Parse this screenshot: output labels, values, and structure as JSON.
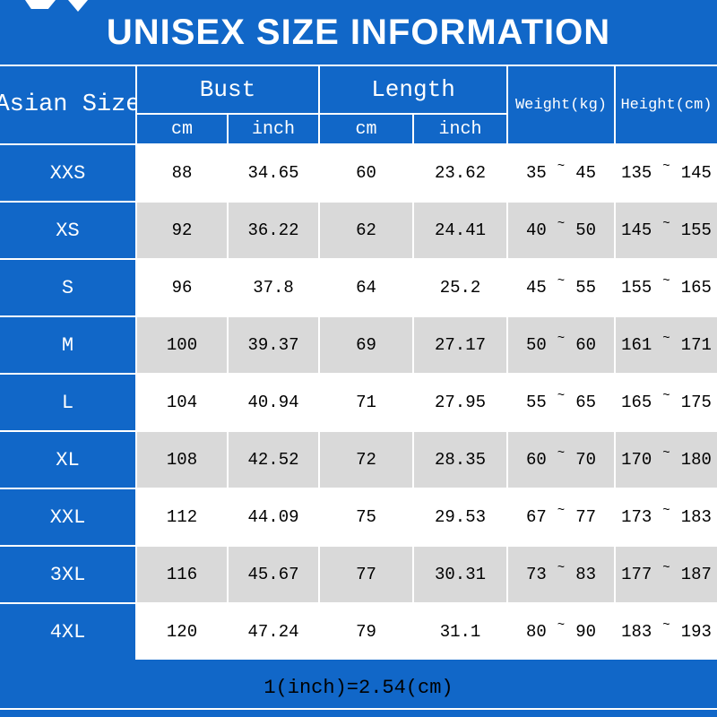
{
  "title": "UNISEX SIZE INFORMATION",
  "footer": "1(inch)=2.54(cm)",
  "header": {
    "size_col": "Asian Size",
    "bust": "Bust",
    "length": "Length",
    "cm": "cm",
    "inch": "inch",
    "weight": "Weight(kg)",
    "height": "Height(cm)",
    "tilde": "~"
  },
  "rows": [
    {
      "size": "XXS",
      "bust_cm": "88",
      "bust_inch": "34.65",
      "length_cm": "60",
      "length_inch": "23.62",
      "weight_min": "35",
      "weight_max": "45",
      "height_min": "135",
      "height_max": "145"
    },
    {
      "size": "XS",
      "bust_cm": "92",
      "bust_inch": "36.22",
      "length_cm": "62",
      "length_inch": "24.41",
      "weight_min": "40",
      "weight_max": "50",
      "height_min": "145",
      "height_max": "155"
    },
    {
      "size": "S",
      "bust_cm": "96",
      "bust_inch": "37.8",
      "length_cm": "64",
      "length_inch": "25.2",
      "weight_min": "45",
      "weight_max": "55",
      "height_min": "155",
      "height_max": "165"
    },
    {
      "size": "M",
      "bust_cm": "100",
      "bust_inch": "39.37",
      "length_cm": "69",
      "length_inch": "27.17",
      "weight_min": "50",
      "weight_max": "60",
      "height_min": "161",
      "height_max": "171"
    },
    {
      "size": "L",
      "bust_cm": "104",
      "bust_inch": "40.94",
      "length_cm": "71",
      "length_inch": "27.95",
      "weight_min": "55",
      "weight_max": "65",
      "height_min": "165",
      "height_max": "175"
    },
    {
      "size": "XL",
      "bust_cm": "108",
      "bust_inch": "42.52",
      "length_cm": "72",
      "length_inch": "28.35",
      "weight_min": "60",
      "weight_max": "70",
      "height_min": "170",
      "height_max": "180"
    },
    {
      "size": "XXL",
      "bust_cm": "112",
      "bust_inch": "44.09",
      "length_cm": "75",
      "length_inch": "29.53",
      "weight_min": "67",
      "weight_max": "77",
      "height_min": "173",
      "height_max": "183"
    },
    {
      "size": "3XL",
      "bust_cm": "116",
      "bust_inch": "45.67",
      "length_cm": "77",
      "length_inch": "30.31",
      "weight_min": "73",
      "weight_max": "83",
      "height_min": "177",
      "height_max": "187"
    },
    {
      "size": "4XL",
      "bust_cm": "120",
      "bust_inch": "47.24",
      "length_cm": "79",
      "length_inch": "31.1",
      "weight_min": "80",
      "weight_max": "90",
      "height_min": "183",
      "height_max": "193"
    }
  ],
  "colors": {
    "blue": "#1167c8",
    "gray_row": "#d9d9d9",
    "white": "#ffffff",
    "text": "#000000"
  },
  "chart_data": {
    "type": "table",
    "title": "UNISEX SIZE INFORMATION",
    "columns": [
      "Asian Size",
      "Bust cm",
      "Bust inch",
      "Length cm",
      "Length inch",
      "Weight(kg)",
      "Height(cm)"
    ],
    "rows": [
      [
        "XXS",
        "88",
        "34.65",
        "60",
        "23.62",
        "35~45",
        "135~145"
      ],
      [
        "XS",
        "92",
        "36.22",
        "62",
        "24.41",
        "40~50",
        "145~155"
      ],
      [
        "S",
        "96",
        "37.8",
        "64",
        "25.2",
        "45~55",
        "155~165"
      ],
      [
        "M",
        "100",
        "39.37",
        "69",
        "27.17",
        "50~60",
        "161~171"
      ],
      [
        "L",
        "104",
        "40.94",
        "71",
        "27.95",
        "55~65",
        "165~175"
      ],
      [
        "XL",
        "108",
        "42.52",
        "72",
        "28.35",
        "60~70",
        "170~180"
      ],
      [
        "XXL",
        "112",
        "44.09",
        "75",
        "29.53",
        "67~77",
        "173~183"
      ],
      [
        "3XL",
        "116",
        "45.67",
        "77",
        "30.31",
        "73~83",
        "177~187"
      ],
      [
        "4XL",
        "120",
        "47.24",
        "79",
        "31.1",
        "80~90",
        "183~193"
      ]
    ],
    "note": "1(inch)=2.54(cm)"
  }
}
